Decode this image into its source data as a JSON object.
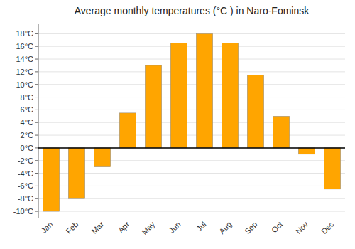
{
  "chart_data": {
    "type": "bar",
    "title": "Average monthly temperatures (°C ) in Naro-Fominsk",
    "categories": [
      "Jan",
      "Feb",
      "Mar",
      "Apr",
      "May",
      "Jun",
      "Jul",
      "Aug",
      "Sep",
      "Oct",
      "Nov",
      "Dec"
    ],
    "values": [
      -10,
      -8,
      -3,
      5.5,
      13,
      16.5,
      18,
      16.5,
      11.5,
      5,
      -1,
      -6.5
    ],
    "color": "#FFA500",
    "ylim": [
      -11,
      19.5
    ],
    "yticks": [
      {
        "value": -10,
        "label": "-10°C"
      },
      {
        "value": -8,
        "label": "-8°C"
      },
      {
        "value": -6,
        "label": "-6°C"
      },
      {
        "value": -4,
        "label": "-4°C"
      },
      {
        "value": -2,
        "label": "-2°C"
      },
      {
        "value": 0,
        "label": "0°C"
      },
      {
        "value": 2,
        "label": "2°C"
      },
      {
        "value": 4,
        "label": "4°C"
      },
      {
        "value": 6,
        "label": "6°C"
      },
      {
        "value": 8,
        "label": "8°C"
      },
      {
        "value": 10,
        "label": "10°C"
      },
      {
        "value": 12,
        "label": "12°C"
      },
      {
        "value": 14,
        "label": "14°C"
      },
      {
        "value": 16,
        "label": "16°C"
      },
      {
        "value": 18,
        "label": "18°C"
      }
    ],
    "grid": true
  }
}
